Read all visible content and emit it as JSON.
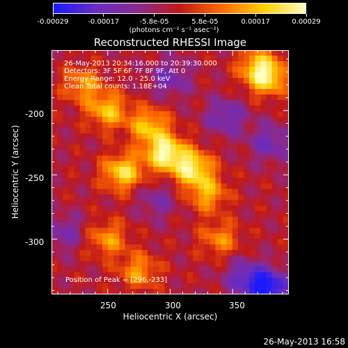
{
  "colorbar": {
    "ticks": [
      "-0.00029",
      "-0.00017",
      "-5.8e-05",
      "5.8e-05",
      "0.00017",
      "0.00029"
    ],
    "unit_label": "(photons cm⁻² s⁻¹ asec⁻²)",
    "colormap": [
      "#1a1aff",
      "#6a2cc0",
      "#8a2a90",
      "#c01818",
      "#ff6a00",
      "#ffd000",
      "#ffffc0"
    ]
  },
  "chart": {
    "title": "Reconstructed RHESSI Image",
    "info_lines": [
      "26-May-2013 20:34:16.000 to 20:39:30.000",
      "Detectors: 3F 5F 6F 7F 8F 9F, Att 0",
      "Energy Range: 12.0 - 25.0 keV",
      "Clean     Total counts: 1.18E+04"
    ],
    "peak_label": "Position of Peak = [296,-233]",
    "xlabel": "Heliocentric X (arcsec)",
    "ylabel": "Heliocentric Y (arcsec)",
    "x_ticks": [
      "250",
      "300",
      "350"
    ],
    "y_ticks": [
      "-200",
      "-250",
      "-300"
    ]
  },
  "footer": {
    "timestamp": "26-May-2013 16:58"
  },
  "chart_data": {
    "type": "heatmap",
    "title": "Reconstructed RHESSI Image",
    "xlabel": "Heliocentric X (arcsec)",
    "ylabel": "Heliocentric Y (arcsec)",
    "xlim": [
      205,
      395
    ],
    "ylim": [
      -343,
      -153
    ],
    "zlim": [
      -0.00029,
      0.00029
    ],
    "peak": [
      296,
      -233
    ],
    "hot_regions": [
      {
        "x": 230,
        "y": -180,
        "level": 0.55
      },
      {
        "x": 250,
        "y": -200,
        "level": 0.7
      },
      {
        "x": 262,
        "y": -248,
        "level": 0.85
      },
      {
        "x": 283,
        "y": -212,
        "level": 0.7
      },
      {
        "x": 296,
        "y": -233,
        "level": 1.0
      },
      {
        "x": 318,
        "y": -245,
        "level": 0.9
      },
      {
        "x": 330,
        "y": -265,
        "level": 0.6
      },
      {
        "x": 250,
        "y": -300,
        "level": 0.55
      },
      {
        "x": 275,
        "y": -325,
        "level": 0.55
      },
      {
        "x": 370,
        "y": -165,
        "level": 0.6
      },
      {
        "x": 378,
        "y": -175,
        "level": 0.75
      },
      {
        "x": 340,
        "y": -300,
        "level": 0.5
      }
    ],
    "cold_regions": [
      {
        "x": 300,
        "y": -175,
        "level": -0.45
      },
      {
        "x": 345,
        "y": -205,
        "level": -0.5
      },
      {
        "x": 380,
        "y": -225,
        "level": -0.5
      },
      {
        "x": 290,
        "y": -270,
        "level": -0.35
      },
      {
        "x": 215,
        "y": -295,
        "level": -0.4
      },
      {
        "x": 360,
        "y": -330,
        "level": -0.6
      },
      {
        "x": 380,
        "y": -338,
        "level": -0.9
      }
    ]
  }
}
